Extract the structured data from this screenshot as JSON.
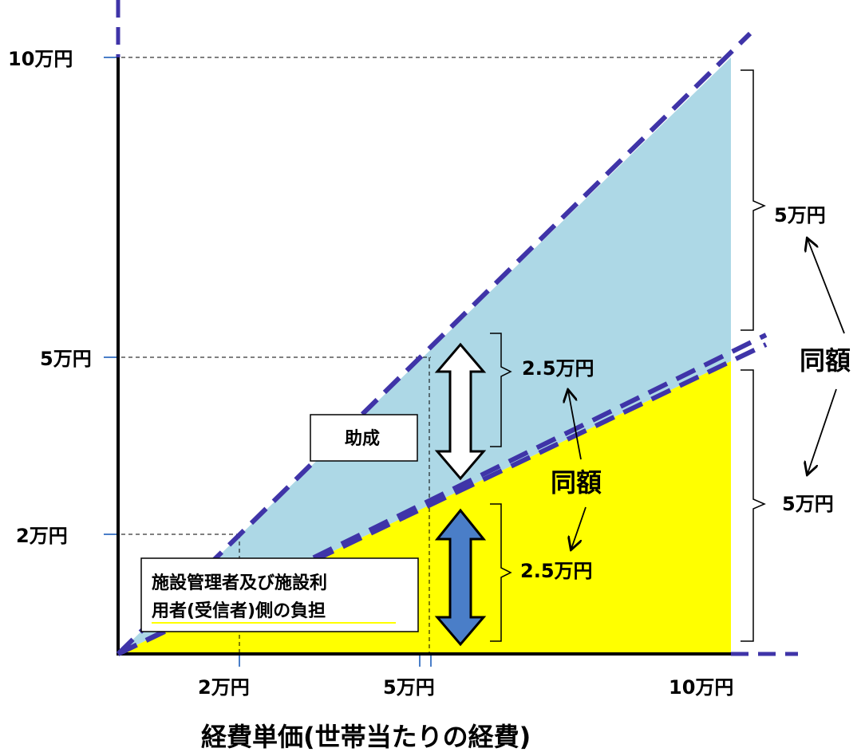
{
  "colors": {
    "upper_area": "#add8e6",
    "lower_area": "#ffff00",
    "dashed_line": "#3f34a8",
    "arrow_blue": "#4a7ec8",
    "arrow_white": "#ffffff"
  },
  "y_axis": {
    "ticks": [
      {
        "value": 100000,
        "label": "10万円"
      },
      {
        "value": 50000,
        "label": "5万円"
      },
      {
        "value": 20000,
        "label": "2万円"
      }
    ]
  },
  "x_axis": {
    "ticks": [
      {
        "value": 20000,
        "label": "2万円"
      },
      {
        "value": 50000,
        "label": "5万円"
      },
      {
        "value": 100000,
        "label": "10万円"
      }
    ],
    "title": "経費単価(世帯当たりの経費)"
  },
  "annotations": {
    "subsidy_label": "助成",
    "burden_label_line1": "施設管理者及び施設利",
    "burden_label_line2": "用者(受信者)側の負担",
    "mid_upper_amount": "2.5万円",
    "mid_lower_amount": "2.5万円",
    "mid_equal": "同額",
    "right_upper_amount": "5万円",
    "right_lower_amount": "5万円",
    "right_equal": "同額"
  }
}
